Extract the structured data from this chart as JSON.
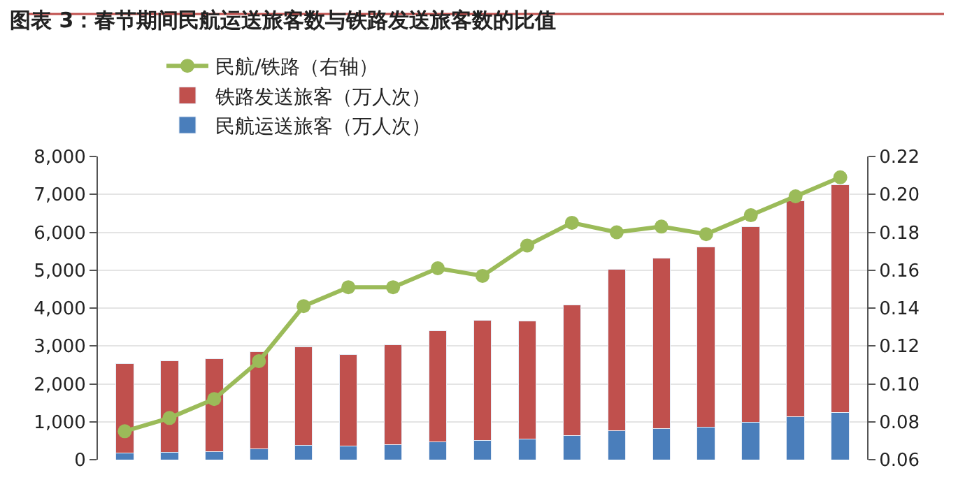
{
  "chart_data": {
    "type": "bar",
    "title": "图表 3：春节期间民航运送旅客数与铁路发送旅客数的比值",
    "categories": [
      null,
      null,
      null,
      null,
      null,
      null,
      null,
      null,
      null,
      null,
      null,
      null,
      null,
      null,
      null,
      null,
      null
    ],
    "stacked": true,
    "series": [
      {
        "name": "民航运送旅客（万人次）",
        "color": "#4a7ebb",
        "values": [
          175,
          200,
          220,
          290,
          370,
          360,
          400,
          470,
          500,
          540,
          640,
          770,
          820,
          850,
          980,
          1130,
          1250
        ]
      },
      {
        "name": "铁路发送旅客（万人次）",
        "color": "#c0504d",
        "values": [
          2360,
          2410,
          2440,
          2550,
          2610,
          2410,
          2630,
          2930,
          3180,
          3110,
          3440,
          4250,
          4490,
          4760,
          5170,
          5700,
          6010
        ]
      },
      {
        "name": "民航/铁路（右轴）",
        "color": "#9bbb59",
        "type": "line",
        "axis": "y2",
        "marker": "circle",
        "values": [
          0.075,
          0.082,
          0.092,
          0.112,
          0.141,
          0.151,
          0.151,
          0.161,
          0.157,
          0.173,
          0.185,
          0.18,
          0.183,
          0.179,
          0.189,
          0.199,
          0.209
        ]
      }
    ],
    "ylim": [
      0,
      8000
    ],
    "yticks": [
      {
        "value": 0,
        "label": "0"
      },
      {
        "value": 1000,
        "label": "1,000"
      },
      {
        "value": 2000,
        "label": "2,000"
      },
      {
        "value": 3000,
        "label": "3,000"
      },
      {
        "value": 4000,
        "label": "4,000"
      },
      {
        "value": 5000,
        "label": "5,000"
      },
      {
        "value": 6000,
        "label": "6,000"
      },
      {
        "value": 7000,
        "label": "7,000"
      },
      {
        "value": 8000,
        "label": "8,000"
      }
    ],
    "y2lim": [
      0.06,
      0.22
    ],
    "y2ticks": [
      {
        "value": 0.06,
        "label": "0.06"
      },
      {
        "value": 0.08,
        "label": "0.08"
      },
      {
        "value": 0.1,
        "label": "0.10"
      },
      {
        "value": 0.12,
        "label": "0.12"
      },
      {
        "value": 0.14,
        "label": "0.14"
      },
      {
        "value": 0.16,
        "label": "0.16"
      },
      {
        "value": 0.18,
        "label": "0.18"
      },
      {
        "value": 0.2,
        "label": "0.20"
      },
      {
        "value": 0.22,
        "label": "0.22"
      }
    ],
    "grid": "y",
    "legend": "top"
  }
}
